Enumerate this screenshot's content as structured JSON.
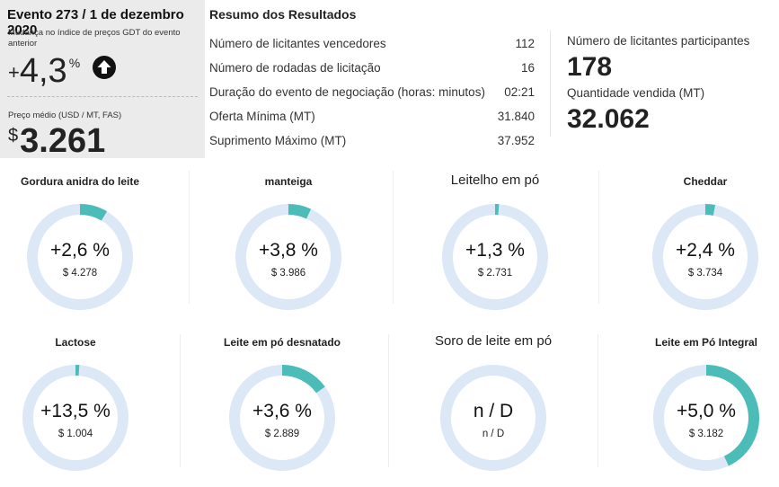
{
  "event": {
    "title": "Evento 273 / 1 de dezembro 2020",
    "change_label": "Mudança no índice de preços GDT do evento anterior",
    "change_sign": "+",
    "change_value": "4,3",
    "change_unit": "%",
    "price_label": "Preço médio (USD / MT, FAS)",
    "price_currency": "$",
    "price_value": "3.261",
    "trend_icon": "arrow-up-circle-icon"
  },
  "summary": {
    "title": "Resumo dos Resultados",
    "rows": [
      {
        "label": "Número de licitantes vencedores",
        "value": "112"
      },
      {
        "label": "Número de rodadas de licitação",
        "value": "16"
      },
      {
        "label": "Duração do evento de negociação (horas: minutos)",
        "value": "02:21"
      },
      {
        "label": "Oferta Mínima (MT)",
        "value": "31.840"
      },
      {
        "label": "Suprimento Máximo (MT)",
        "value": "37.952"
      }
    ]
  },
  "stats": {
    "participants_label": "Número de licitantes participantes",
    "participants_value": "178",
    "quantity_label": "Quantidade vendida (MT)",
    "quantity_value": "32.062"
  },
  "colors": {
    "ring_track": "#dce8f6",
    "ring_fill": "#4cbcb9",
    "event_bg": "#ebebeb"
  },
  "products": [
    {
      "name": "Gordura anidra do leite",
      "change": "+2,6   %",
      "price": "$ 4.278",
      "fraction": 0.085
    },
    {
      "name": "manteiga",
      "change": "+3,8 %",
      "price": "$ 3.986",
      "fraction": 0.07
    },
    {
      "name": "Leitelho em pó",
      "change": "+1,3 %",
      "price": "$ 2.731",
      "fraction": 0.012
    },
    {
      "name": "Cheddar",
      "change": "+2,4 %",
      "price": "$ 3.734",
      "fraction": 0.03
    },
    {
      "name": "Lactose",
      "change": "+13,5 %",
      "price": "$ 1.004",
      "fraction": 0.012
    },
    {
      "name": "Leite em pó desnatado",
      "change": "+3,6   %",
      "price": "$ 2.889",
      "fraction": 0.15
    },
    {
      "name": "Soro de leite em pó",
      "change": "n / D",
      "price": "n / D",
      "fraction": 0
    },
    {
      "name": "Leite em Pó Integral",
      "change": "+5,0 %",
      "price": "$ 3.182",
      "fraction": 0.43
    }
  ]
}
